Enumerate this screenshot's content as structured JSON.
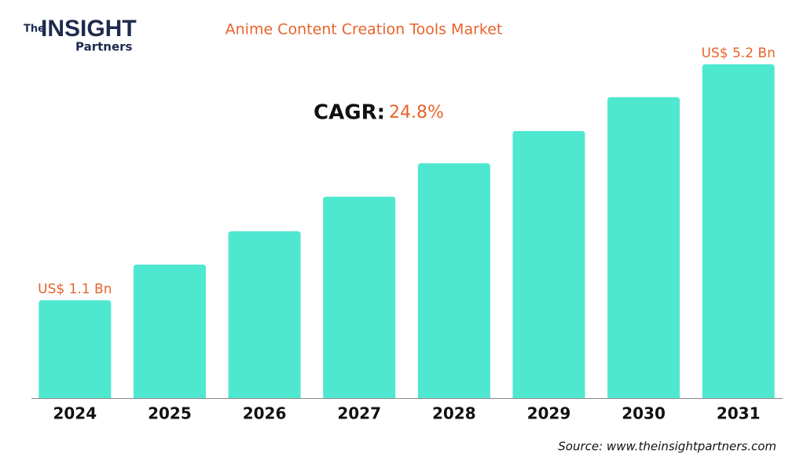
{
  "chart_data": {
    "type": "bar",
    "title": "Anime Content Creation Tools Market",
    "logo": {
      "prefix": "The",
      "name": "INSIGHT",
      "sub": "Partners"
    },
    "cagr_label": "CAGR:",
    "cagr_value": "24.8%",
    "categories": [
      "2024",
      "2025",
      "2026",
      "2027",
      "2028",
      "2029",
      "2030",
      "2031"
    ],
    "values": [
      1.1,
      1.72,
      2.3,
      2.9,
      3.48,
      4.04,
      4.63,
      5.2
    ],
    "value_labels": [
      "US$ 1.1 Bn",
      null,
      null,
      null,
      null,
      null,
      null,
      "US$ 5.2 Bn"
    ],
    "color": "#4ee8d0",
    "ylim": [
      -0.6,
      5.6
    ],
    "source": "Source: www.theinsightpartners.com"
  }
}
